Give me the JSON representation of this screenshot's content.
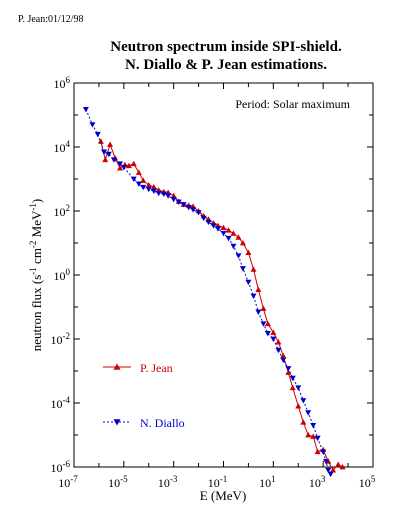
{
  "stamp": "P. Jean:01/12/98",
  "chart_data": {
    "type": "line",
    "title": [
      "Neutron spectrum inside SPI-shield.",
      "N. Diallo & P. Jean estimations."
    ],
    "annotation": "Period: Solar maximum",
    "xlabel": "E (MeV)",
    "ylabel": "neutron flux (s-1 cm-2 MeV-1)",
    "xscale": "log",
    "yscale": "log",
    "xlim": [
      1e-07,
      100000
    ],
    "ylim": [
      1e-06,
      1000000
    ],
    "x_tick_exponents": [
      -7,
      -5,
      -3,
      -1,
      1,
      3,
      5
    ],
    "y_tick_exponents": [
      6,
      4,
      2,
      0,
      -2,
      -4,
      -6
    ],
    "legend_placement": "left-lower",
    "series": [
      {
        "name": "P. Jean",
        "color": "#cc0000",
        "marker": "triangle-up",
        "line": "solid",
        "x": [
          1.2e-06,
          1.8e-06,
          2.8e-06,
          4.5e-06,
          7e-06,
          1.1e-05,
          1.6e-05,
          2.5e-05,
          4e-05,
          6e-05,
          0.0001,
          0.00016,
          0.00025,
          0.0004,
          0.0006,
          0.001,
          0.0016,
          0.0025,
          0.004,
          0.006,
          0.01,
          0.016,
          0.025,
          0.04,
          0.06,
          0.1,
          0.16,
          0.25,
          0.4,
          0.6,
          1,
          1.6,
          2.5,
          4,
          6,
          10,
          16,
          25,
          40,
          60,
          100,
          160,
          250,
          400,
          600,
          1000,
          1600,
          2500,
          4000,
          6000
        ],
        "y": [
          15000,
          4000,
          12000,
          4500,
          2200,
          2800,
          2600,
          3000,
          1600,
          900,
          650,
          560,
          450,
          400,
          380,
          300,
          200,
          160,
          150,
          140,
          100,
          70,
          55,
          42,
          35,
          30,
          25,
          20,
          15,
          10,
          5,
          1.5,
          0.35,
          0.09,
          0.03,
          0.016,
          0.008,
          0.003,
          0.0009,
          0.0003,
          8e-05,
          2.5e-05,
          1e-05,
          9e-06,
          3e-06,
          3.5e-06,
          1.5e-06,
          8e-07,
          1.2e-06,
          1e-06
        ]
      },
      {
        "name": "N. Diallo",
        "color": "#0000cc",
        "marker": "triangle-down",
        "line": "dotted",
        "x": [
          3e-07,
          5.5e-07,
          9e-07,
          1.6e-06,
          2.5e-06,
          4e-06,
          7e-06,
          1e-05,
          2.5e-05,
          4e-05,
          6e-05,
          0.0001,
          0.00016,
          0.00025,
          0.0004,
          0.0006,
          0.001,
          0.0016,
          0.0025,
          0.004,
          0.006,
          0.01,
          0.016,
          0.025,
          0.04,
          0.06,
          0.1,
          0.16,
          0.25,
          0.4,
          0.6,
          1,
          1.6,
          2.5,
          4,
          6,
          10,
          16,
          25,
          40,
          60,
          100,
          160,
          250,
          400,
          600,
          1000,
          1300,
          1600,
          2000
        ],
        "y": [
          150000,
          50000,
          25000,
          7000,
          6000,
          4000,
          3000,
          2300,
          1000,
          700,
          550,
          480,
          420,
          360,
          340,
          300,
          230,
          190,
          160,
          130,
          110,
          90,
          60,
          45,
          35,
          28,
          20,
          14,
          8,
          4,
          1.6,
          0.6,
          0.22,
          0.07,
          0.03,
          0.015,
          0.01,
          0.0045,
          0.0022,
          0.0012,
          0.0006,
          0.0003,
          0.00012,
          5e-05,
          2e-05,
          8e-06,
          3e-06,
          1.5e-06,
          8e-07,
          6e-07
        ]
      }
    ]
  }
}
